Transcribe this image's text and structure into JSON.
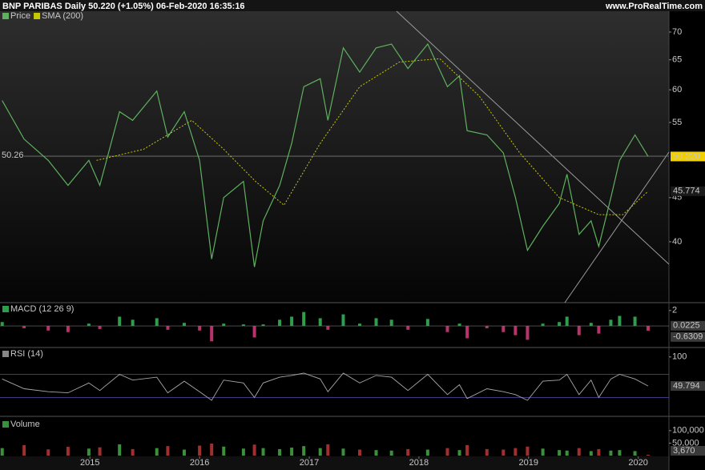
{
  "chart_data": [
    {
      "type": "line",
      "title": "BNP PARIBAS Daily 50.220 (+1.05%) 06-Feb-2020 16:35:16",
      "source": "www.ProRealTime.com",
      "log_scale": true,
      "ylim": [
        34,
        74
      ],
      "yticks": [
        40,
        45,
        55,
        60,
        65,
        70
      ],
      "xlim": [
        2014.18,
        2020.28
      ],
      "xticks": [
        2015,
        2016,
        2017,
        2018,
        2019,
        2020
      ],
      "level": {
        "value": 50.26,
        "label": "50.26"
      },
      "series": [
        {
          "name": "Price",
          "color": "#5fb05f",
          "x": [
            2014.2,
            2014.4,
            2014.62,
            2014.8,
            2014.99,
            2015.09,
            2015.27,
            2015.39,
            2015.61,
            2015.71,
            2015.86,
            2016.0,
            2016.11,
            2016.22,
            2016.4,
            2016.5,
            2016.58,
            2016.73,
            2016.84,
            2016.95,
            2017.1,
            2017.17,
            2017.31,
            2017.46,
            2017.61,
            2017.75,
            2017.9,
            2018.08,
            2018.26,
            2018.37,
            2018.44,
            2018.62,
            2018.77,
            2018.88,
            2018.99,
            2019.13,
            2019.28,
            2019.35,
            2019.46,
            2019.57,
            2019.64,
            2019.75,
            2019.83,
            2019.97,
            2020.09
          ],
          "values": [
            58.3,
            52.6,
            49.7,
            46.5,
            49.7,
            46.5,
            56.6,
            55.3,
            59.8,
            52.9,
            56.6,
            49.7,
            38.2,
            45.0,
            47.0,
            37.4,
            42.3,
            46.5,
            52.0,
            60.5,
            61.8,
            55.3,
            67.1,
            62.9,
            67.1,
            67.8,
            63.5,
            67.8,
            60.5,
            62.3,
            53.8,
            53.2,
            50.7,
            45.0,
            39.1,
            41.7,
            44.3,
            47.9,
            40.8,
            42.3,
            39.5,
            45.0,
            49.7,
            53.2,
            50.22
          ],
          "last_label": "50.220"
        },
        {
          "name": "SMA (200)",
          "color": "#c8c800",
          "x": [
            2015.06,
            2015.49,
            2015.93,
            2016.22,
            2016.51,
            2016.77,
            2017.1,
            2017.46,
            2017.82,
            2018.19,
            2018.55,
            2018.92,
            2019.28,
            2019.64,
            2019.86,
            2020.09
          ],
          "values": [
            49.7,
            51.2,
            55.3,
            51.2,
            47.0,
            44.1,
            52.0,
            60.5,
            64.6,
            65.2,
            59.0,
            50.7,
            45.0,
            43.0,
            43.0,
            45.774
          ],
          "last_label": "45.774"
        }
      ]
    },
    {
      "type": "bar",
      "title": "MACD (12 26 9)",
      "ylim": [
        -2.8,
        2.6
      ],
      "yticks": [
        2
      ],
      "colors": [
        "#2e9e4a",
        "#b8336a"
      ],
      "x": [
        2014.2,
        2014.4,
        2014.62,
        2014.8,
        2014.99,
        2015.09,
        2015.27,
        2015.39,
        2015.61,
        2015.71,
        2015.86,
        2016.0,
        2016.11,
        2016.22,
        2016.4,
        2016.5,
        2016.58,
        2016.73,
        2016.84,
        2016.95,
        2017.1,
        2017.17,
        2017.31,
        2017.46,
        2017.61,
        2017.75,
        2017.9,
        2018.08,
        2018.26,
        2018.37,
        2018.44,
        2018.62,
        2018.77,
        2018.88,
        2018.99,
        2019.13,
        2019.28,
        2019.35,
        2019.46,
        2019.57,
        2019.64,
        2019.75,
        2019.83,
        2019.97,
        2020.09
      ],
      "values": [
        0.5,
        -0.3,
        -0.6,
        -0.8,
        0.3,
        -0.4,
        1.2,
        0.8,
        1.0,
        -0.5,
        0.4,
        -0.6,
        -2.0,
        0.3,
        0.2,
        -1.5,
        0.2,
        0.8,
        1.2,
        1.8,
        1.0,
        -0.5,
        1.5,
        0.3,
        1.0,
        0.8,
        -0.5,
        0.9,
        -0.8,
        0.3,
        -1.6,
        -0.3,
        -0.8,
        -1.2,
        -1.8,
        0.3,
        0.5,
        1.2,
        -1.2,
        0.4,
        -1.0,
        0.8,
        1.3,
        1.2,
        -0.6309
      ],
      "levels": [
        {
          "value": 0.0225,
          "label": "0.0225"
        },
        {
          "value": -0.6309,
          "label": "-0.6309"
        }
      ]
    },
    {
      "type": "line",
      "title": "RSI (14)",
      "ylim": [
        -2.7,
        110.8
      ],
      "yticks": [
        100
      ],
      "bands": [
        30,
        70
      ],
      "color": "#a8a8a8",
      "x": [
        2014.2,
        2014.4,
        2014.62,
        2014.8,
        2014.99,
        2015.09,
        2015.27,
        2015.39,
        2015.61,
        2015.71,
        2015.86,
        2016.0,
        2016.11,
        2016.22,
        2016.4,
        2016.5,
        2016.58,
        2016.73,
        2016.84,
        2016.95,
        2017.1,
        2017.17,
        2017.31,
        2017.46,
        2017.61,
        2017.75,
        2017.9,
        2018.08,
        2018.26,
        2018.37,
        2018.44,
        2018.62,
        2018.77,
        2018.88,
        2018.99,
        2019.13,
        2019.28,
        2019.35,
        2019.46,
        2019.57,
        2019.64,
        2019.75,
        2019.83,
        2019.97,
        2020.09
      ],
      "values": [
        62,
        45,
        40,
        38,
        55,
        42,
        70,
        60,
        65,
        38,
        58,
        40,
        25,
        60,
        55,
        30,
        55,
        65,
        68,
        72,
        62,
        40,
        72,
        55,
        68,
        65,
        42,
        70,
        35,
        52,
        28,
        45,
        40,
        35,
        25,
        58,
        60,
        70,
        35,
        60,
        30,
        62,
        70,
        62,
        49.794
      ],
      "last_label": "49.794"
    },
    {
      "type": "bar",
      "title": "Volume",
      "ylim": [
        0,
        138000
      ],
      "yticks": [
        {
          "value": 100000,
          "label": "100,000"
        },
        {
          "value": 50000,
          "label": "50,000"
        }
      ],
      "colors": [
        "#3c8f3c",
        "#a03030"
      ],
      "x": [
        2014.2,
        2014.4,
        2014.62,
        2014.8,
        2014.99,
        2015.09,
        2015.27,
        2015.39,
        2015.61,
        2015.71,
        2015.86,
        2016.0,
        2016.11,
        2016.22,
        2016.4,
        2016.5,
        2016.58,
        2016.73,
        2016.84,
        2016.95,
        2017.1,
        2017.17,
        2017.31,
        2017.46,
        2017.61,
        2017.75,
        2017.9,
        2018.08,
        2018.26,
        2018.37,
        2018.44,
        2018.62,
        2018.77,
        2018.88,
        2018.99,
        2019.13,
        2019.28,
        2019.35,
        2019.46,
        2019.57,
        2019.64,
        2019.75,
        2019.83,
        2019.97,
        2020.09
      ],
      "values": [
        30000,
        42000,
        25000,
        35000,
        28000,
        33000,
        45000,
        26000,
        30000,
        38000,
        24000,
        40000,
        48000,
        36000,
        28000,
        44000,
        30000,
        26000,
        32000,
        38000,
        30000,
        45000,
        28000,
        24000,
        22000,
        20000,
        26000,
        24000,
        30000,
        22000,
        42000,
        26000,
        24000,
        30000,
        36000,
        28000,
        22000,
        20000,
        30000,
        18000,
        26000,
        20000,
        22000,
        18000,
        3670
      ],
      "last_label": "3,670"
    }
  ]
}
